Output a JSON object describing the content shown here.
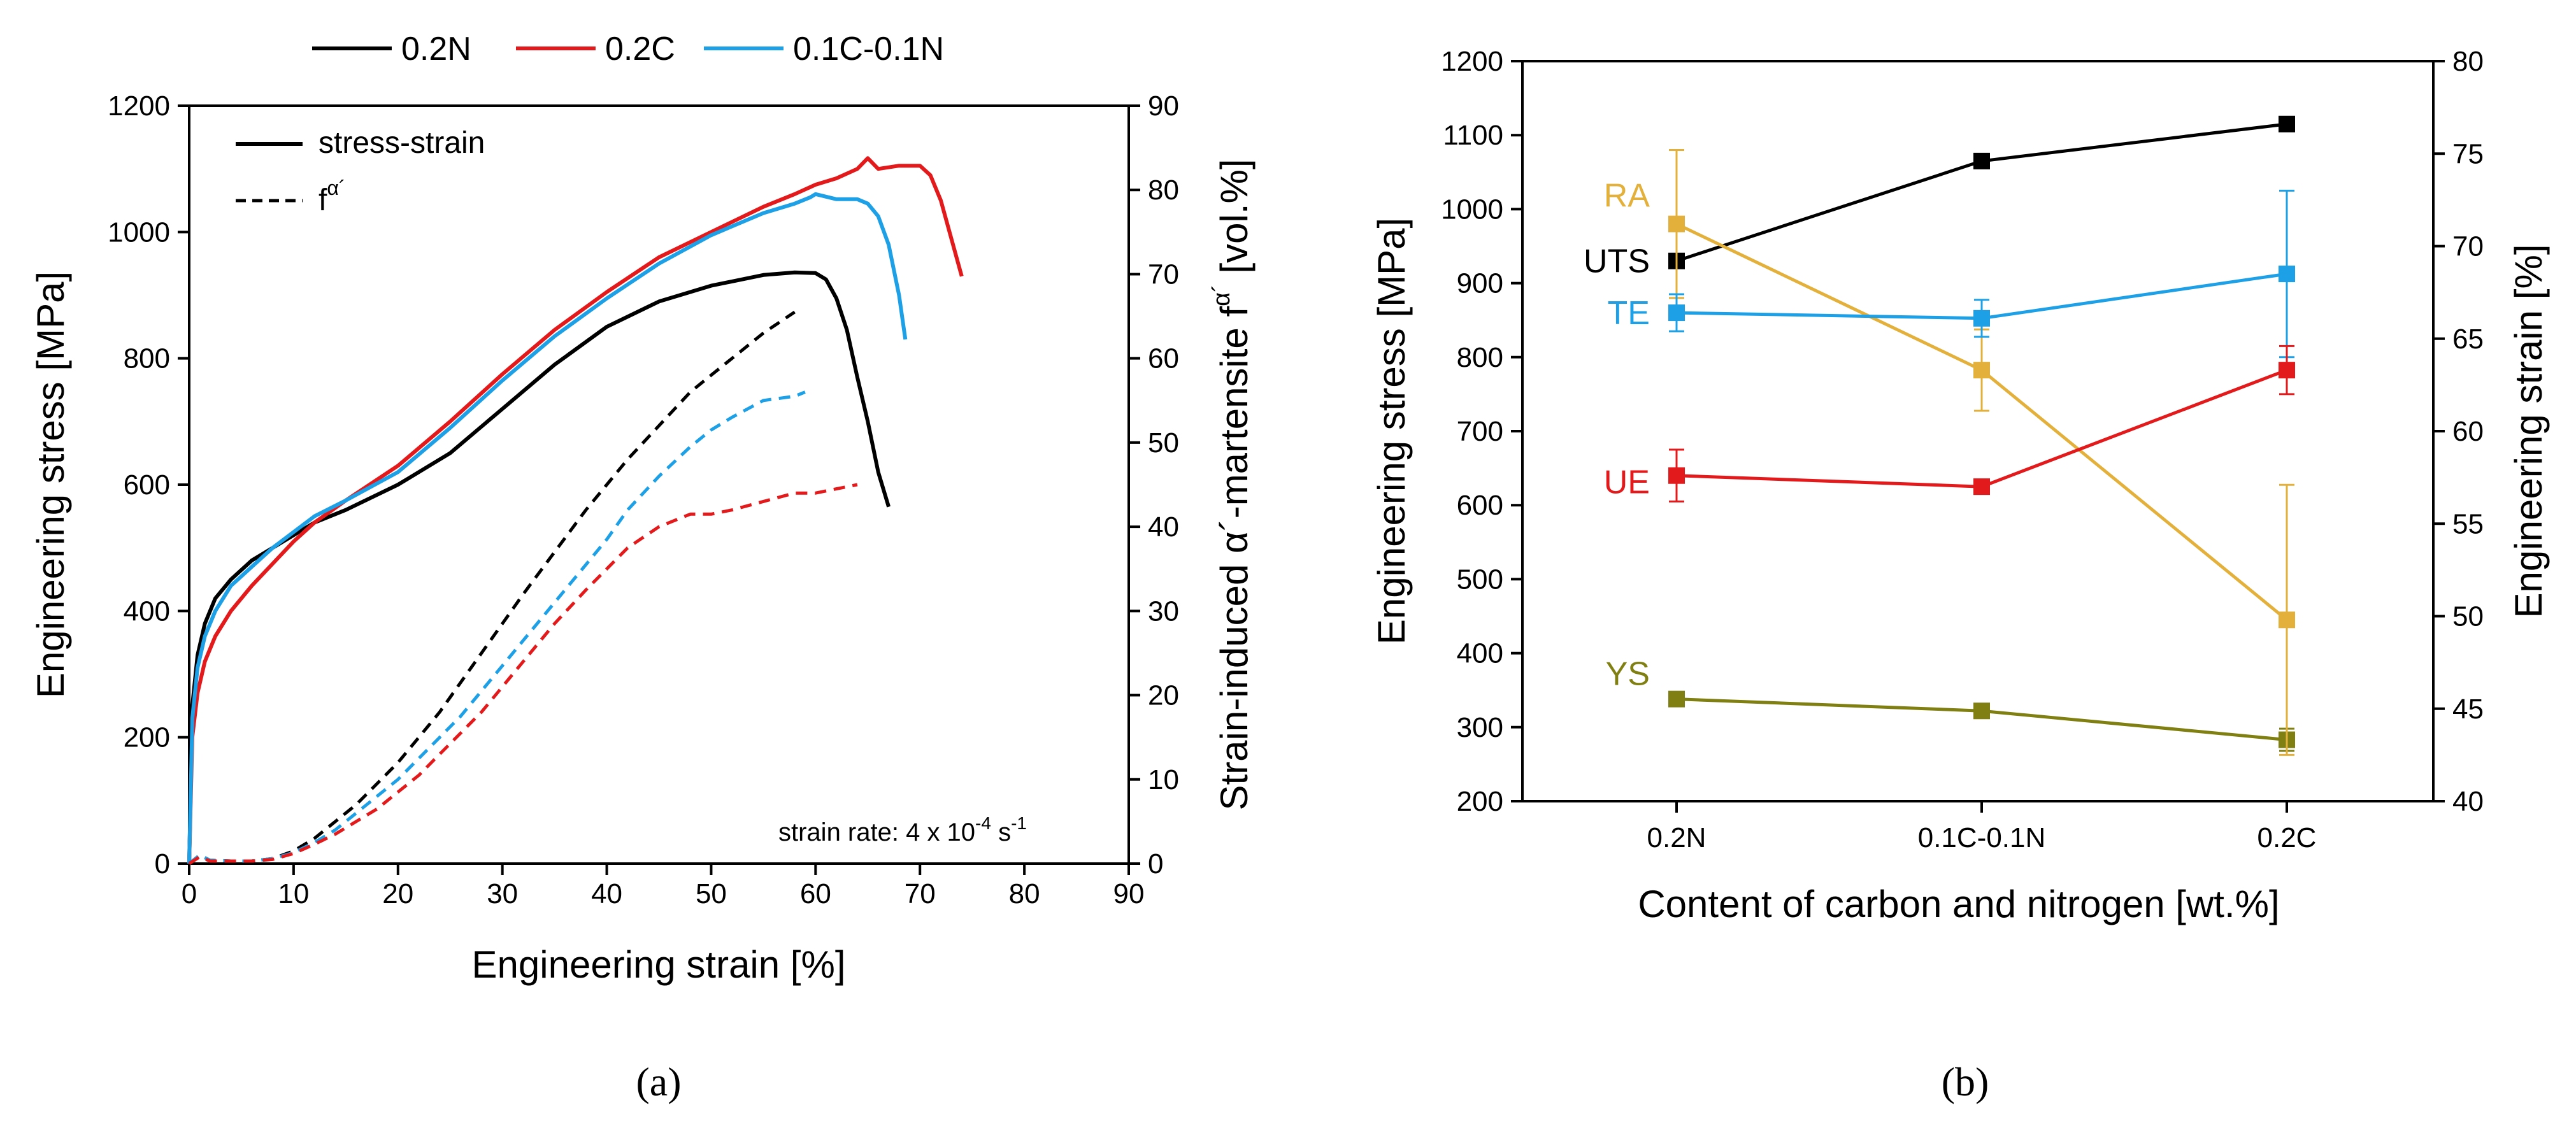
{
  "chart_data": [
    {
      "panel": "(a)",
      "type": "line",
      "legend_top": [
        {
          "name": "0.2N",
          "color": "#000000"
        },
        {
          "name": "0.2C",
          "color": "#e31a1c"
        },
        {
          "name": "0.1C-0.1N",
          "color": "#1ea0e6"
        }
      ],
      "legend_inner": [
        {
          "name": "stress-strain",
          "style": "solid"
        },
        {
          "name": "f",
          "superscript": "α´",
          "style": "dashed"
        }
      ],
      "annotation": {
        "text": "strain rate: 4 x 10",
        "sup": "-4",
        "tail": " s",
        "sup2": "-1"
      },
      "xlabel": "Engineering strain [%]",
      "ylabel": "Engineering stress [MPa]",
      "y2label": "Strain-induced α´-martensite f",
      "y2label_sup": "α´",
      "y2label_tail": " [vol.%]",
      "xlim": [
        0,
        90
      ],
      "ylim": [
        0,
        1200
      ],
      "y2lim": [
        0,
        90
      ],
      "xticks": [
        0,
        10,
        20,
        30,
        40,
        50,
        60,
        70,
        80,
        90
      ],
      "yticks": [
        0,
        200,
        400,
        600,
        800,
        1000,
        1200
      ],
      "y2ticks": [
        0,
        10,
        20,
        30,
        40,
        50,
        60,
        70,
        80,
        90
      ],
      "series": [
        {
          "name": "0.2N",
          "kind": "stress",
          "color": "#000000",
          "x": [
            0,
            0.3,
            0.8,
            1.5,
            2.5,
            4,
            6,
            8,
            10,
            12,
            15,
            20,
            25,
            30,
            35,
            40,
            45,
            50,
            55,
            58,
            60,
            61,
            62,
            63,
            64,
            65,
            66,
            67
          ],
          "y": [
            0,
            250,
            330,
            380,
            420,
            450,
            480,
            500,
            520,
            540,
            560,
            600,
            650,
            720,
            790,
            850,
            890,
            915,
            932,
            936,
            935,
            925,
            895,
            845,
            770,
            700,
            620,
            565
          ]
        },
        {
          "name": "0.2C",
          "kind": "stress",
          "color": "#e31a1c",
          "x": [
            0,
            0.3,
            0.8,
            1.5,
            2.5,
            4,
            6,
            8,
            10,
            12,
            15,
            20,
            25,
            30,
            35,
            40,
            45,
            50,
            55,
            58,
            60,
            62,
            64,
            65,
            66,
            68,
            70,
            71,
            72,
            73,
            74
          ],
          "y": [
            0,
            200,
            270,
            320,
            360,
            400,
            440,
            475,
            510,
            540,
            575,
            630,
            700,
            775,
            845,
            905,
            960,
            1000,
            1040,
            1060,
            1075,
            1085,
            1100,
            1117,
            1100,
            1105,
            1105,
            1090,
            1050,
            990,
            930
          ]
        },
        {
          "name": "0.1C-0.1N",
          "kind": "stress",
          "color": "#1ea0e6",
          "x": [
            0,
            0.3,
            0.8,
            1.5,
            2.5,
            4,
            6,
            8,
            10,
            12,
            15,
            20,
            25,
            30,
            35,
            40,
            45,
            50,
            55,
            58,
            59.5,
            60,
            62,
            64,
            65,
            66,
            67,
            68,
            68.6
          ],
          "y": [
            0,
            230,
            310,
            360,
            400,
            440,
            470,
            500,
            525,
            550,
            575,
            620,
            690,
            765,
            835,
            895,
            950,
            995,
            1030,
            1045,
            1055,
            1060,
            1052,
            1052,
            1045,
            1025,
            980,
            900,
            830
          ]
        },
        {
          "name": "0.2N",
          "kind": "martensite",
          "color": "#000000",
          "x": [
            0,
            1,
            2,
            4,
            6,
            8,
            10,
            12,
            14,
            16,
            18,
            20,
            22,
            24,
            26,
            28,
            30,
            32,
            35,
            38,
            40,
            42,
            45,
            48,
            50,
            52,
            55,
            58
          ],
          "y": [
            0,
            1.0,
            0.4,
            0.3,
            0.3,
            0.6,
            1.5,
            3,
            5,
            7,
            9.5,
            12,
            15,
            18,
            21.5,
            25,
            28.5,
            32,
            37,
            42,
            45,
            48,
            52,
            56,
            58,
            60,
            63,
            65.5
          ]
        },
        {
          "name": "0.1C-0.1N",
          "kind": "martensite",
          "color": "#1ea0e6",
          "x": [
            0,
            1,
            2,
            4,
            6,
            8,
            10,
            12,
            14,
            16,
            18,
            20,
            22,
            24,
            26,
            28,
            30,
            32,
            35,
            38,
            40,
            42,
            45,
            48,
            50,
            52,
            55,
            58,
            59
          ],
          "y": [
            0,
            1.0,
            0.4,
            0.3,
            0.3,
            0.6,
            1.3,
            2.5,
            4,
            6,
            8,
            10,
            12.5,
            15,
            17.5,
            20.5,
            23.5,
            26.5,
            31,
            35.5,
            38.5,
            42,
            46,
            49.5,
            51.5,
            53,
            55,
            55.5,
            56
          ]
        },
        {
          "name": "0.2C",
          "kind": "martensite",
          "color": "#e31a1c",
          "x": [
            0,
            1,
            2,
            4,
            6,
            8,
            10,
            12,
            14,
            16,
            18,
            20,
            22,
            24,
            26,
            28,
            30,
            32,
            35,
            38,
            40,
            42,
            45,
            48,
            50,
            52,
            55,
            58,
            60,
            62,
            64
          ],
          "y": [
            0,
            0.8,
            0.3,
            0.3,
            0.3,
            0.5,
            1.2,
            2.3,
            3.5,
            5,
            6.5,
            8.5,
            10.5,
            13,
            15.5,
            18,
            21,
            24,
            28.5,
            32.5,
            35,
            37.5,
            40,
            41.5,
            41.5,
            42,
            43,
            44,
            44,
            44.5,
            45
          ]
        }
      ]
    },
    {
      "panel": "(b)",
      "type": "line",
      "categories": [
        "0.2N",
        "0.1C-0.1N",
        "0.2C"
      ],
      "xlabel": "Content of carbon and nitrogen [wt.%]",
      "ylabel": "Engineering stress [MPa]",
      "y2label": "Engineering strain [%]",
      "ylim": [
        200,
        1200
      ],
      "y2lim": [
        40,
        80
      ],
      "yticks": [
        200,
        300,
        400,
        500,
        600,
        700,
        800,
        900,
        1000,
        1100,
        1200
      ],
      "y2ticks": [
        40,
        45,
        50,
        55,
        60,
        65,
        70,
        75,
        80
      ],
      "series": [
        {
          "name": "UTS",
          "axis": "left",
          "color": "#000000",
          "values": [
            930,
            1065,
            1115
          ],
          "err": [
            0,
            0,
            0
          ]
        },
        {
          "name": "YS",
          "axis": "left",
          "color": "#7f7f12",
          "values": [
            338,
            322,
            283
          ],
          "err": [
            0,
            0,
            15
          ]
        },
        {
          "name": "RA",
          "axis": "right",
          "color": "#e3b13b",
          "values": [
            71.2,
            63.3,
            49.8
          ],
          "err": [
            4.0,
            2.2,
            7.3
          ]
        },
        {
          "name": "TE",
          "axis": "right",
          "color": "#1ea0e6",
          "values": [
            66.4,
            66.1,
            68.5
          ],
          "err": [
            1.0,
            1.0,
            4.5
          ]
        },
        {
          "name": "UE",
          "axis": "right",
          "color": "#e31a1c",
          "values": [
            57.6,
            57.0,
            63.3
          ],
          "err": [
            1.4,
            0.0,
            1.3
          ]
        }
      ]
    }
  ]
}
